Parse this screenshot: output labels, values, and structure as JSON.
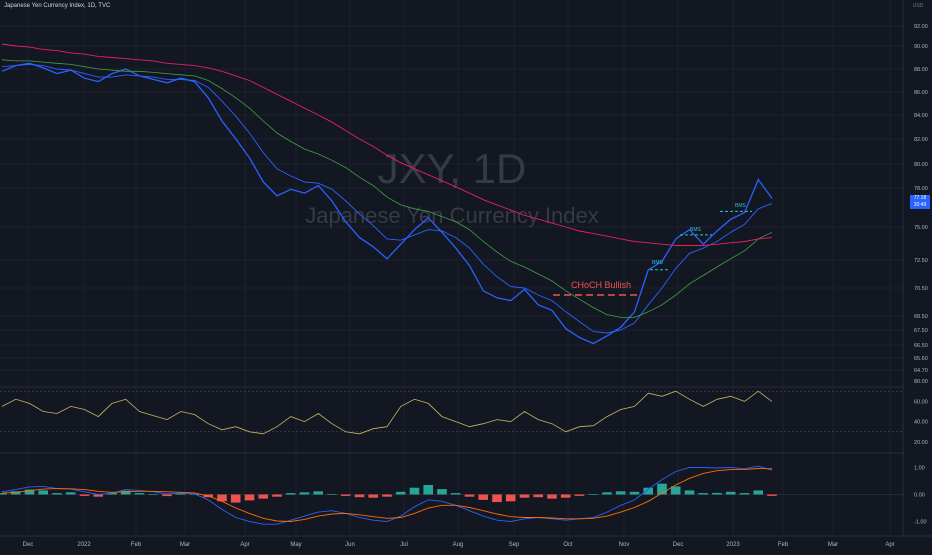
{
  "header": {
    "symbol_line": "Japanese Yen Currency Index, 1D, TVC",
    "currency": "USD"
  },
  "watermark": {
    "symbol": "JXY, 1D",
    "description": "Japanese Yen Currency Index"
  },
  "last_price": {
    "value": "77.18",
    "countdown": "20:49"
  },
  "colors": {
    "background": "#131722",
    "price_line": "#2962ff",
    "ema_fast": "#2962ff",
    "ema_mid": "#43a047",
    "ema_slow": "#e91e63",
    "rsi": "#c8b560",
    "macd_line": "#2962ff",
    "signal_line": "#ff6d00",
    "hist_pos": "#26a69a",
    "hist_neg": "#ef5350",
    "annotation_choch": "#ef5350",
    "annotation_bms": "#26c6da"
  },
  "annotations": {
    "choch": "CHoCH Bullish",
    "bms": [
      "BMS",
      "BMS",
      "BMS"
    ]
  },
  "chart_data": [
    {
      "type": "line",
      "title": "",
      "x_axis_labels": [
        "Dec",
        "2022",
        "Feb",
        "Mar",
        "Apr",
        "May",
        "Jun",
        "Jul",
        "Aug",
        "Sep",
        "Oct",
        "Nov",
        "Dec",
        "2023",
        "Feb",
        "Mar",
        "Apr"
      ],
      "y_ticks": [
        "92.00",
        "90.00",
        "88.00",
        "86.00",
        "84.00",
        "82.00",
        "80.00",
        "78.00",
        "75.00",
        "72.50",
        "70.50",
        "68.50",
        "67.50",
        "66.50",
        "65.60",
        "64.70"
      ],
      "ylim": [
        64.7,
        92.0
      ],
      "series": [
        {
          "role": "price",
          "values": [
            87.8,
            88.3,
            88.5,
            88.1,
            87.6,
            87.9,
            87.2,
            86.9,
            87.6,
            88.0,
            87.4,
            87.1,
            86.8,
            87.2,
            86.9,
            85.5,
            83.5,
            82.0,
            80.5,
            78.5,
            77.4,
            77.9,
            77.6,
            78.2,
            77.0,
            75.4,
            74.2,
            73.5,
            72.6,
            73.7,
            74.8,
            75.7,
            74.6,
            73.4,
            72.1,
            70.3,
            69.8,
            69.6,
            70.4,
            69.3,
            68.9,
            67.6,
            67.0,
            66.6,
            67.1,
            67.7,
            68.8,
            71.8,
            72.4,
            74.1,
            74.8,
            73.7,
            74.7,
            75.6,
            76.1,
            78.7,
            77.2
          ]
        },
        {
          "role": "ema-fast",
          "values": [
            88.2,
            88.3,
            88.4,
            88.3,
            88.0,
            87.9,
            87.6,
            87.3,
            87.3,
            87.5,
            87.4,
            87.3,
            87.1,
            87.1,
            87.0,
            86.4,
            85.2,
            83.9,
            82.5,
            80.9,
            79.6,
            79.0,
            78.5,
            78.4,
            77.9,
            77.0,
            76.0,
            75.1,
            74.1,
            74.0,
            74.4,
            74.8,
            74.7,
            74.2,
            73.4,
            72.2,
            71.3,
            70.6,
            70.5,
            70.0,
            69.6,
            68.8,
            68.1,
            67.4,
            67.3,
            67.5,
            68.0,
            69.3,
            70.5,
            71.9,
            73.0,
            73.4,
            73.9,
            74.6,
            75.2,
            76.4,
            76.8
          ]
        },
        {
          "role": "ema-mid",
          "values": [
            88.8,
            88.7,
            88.7,
            88.6,
            88.5,
            88.4,
            88.2,
            88.0,
            87.9,
            87.8,
            87.8,
            87.7,
            87.6,
            87.5,
            87.4,
            87.0,
            86.3,
            85.5,
            84.6,
            83.5,
            82.5,
            81.8,
            81.2,
            80.8,
            80.3,
            79.7,
            78.9,
            78.2,
            77.3,
            76.7,
            76.4,
            76.2,
            75.8,
            75.4,
            74.8,
            73.9,
            73.1,
            72.4,
            72.0,
            71.5,
            71.0,
            70.3,
            69.7,
            69.1,
            68.6,
            68.4,
            68.4,
            68.8,
            69.3,
            70.0,
            70.8,
            71.4,
            72.0,
            72.6,
            73.2,
            74.1,
            74.6
          ]
        },
        {
          "role": "ema-slow",
          "values": [
            90.2,
            90.0,
            89.9,
            89.7,
            89.6,
            89.4,
            89.3,
            89.1,
            89.0,
            88.9,
            88.8,
            88.7,
            88.5,
            88.4,
            88.3,
            88.1,
            87.8,
            87.4,
            87.0,
            86.4,
            85.8,
            85.2,
            84.6,
            84.0,
            83.4,
            82.7,
            82.0,
            81.4,
            80.7,
            80.1,
            79.6,
            79.1,
            78.6,
            78.1,
            77.6,
            77.1,
            76.7,
            76.3,
            75.9,
            75.6,
            75.3,
            75.0,
            74.7,
            74.5,
            74.3,
            74.1,
            73.9,
            73.8,
            73.7,
            73.6,
            73.6,
            73.6,
            73.7,
            73.8,
            73.9,
            74.1,
            74.2
          ]
        }
      ],
      "annotation_levels": {
        "choch": 70.0,
        "bms": [
          71.8,
          74.4,
          76.2
        ]
      }
    },
    {
      "type": "line",
      "title": "",
      "y_ticks": [
        "80.00",
        "60.00",
        "40.00",
        "20.00"
      ],
      "ylim": [
        15,
        85
      ],
      "levels": [
        70,
        30
      ],
      "series": [
        {
          "role": "rsi",
          "values": [
            55,
            62,
            58,
            50,
            48,
            55,
            52,
            45,
            58,
            62,
            50,
            46,
            42,
            50,
            47,
            38,
            32,
            35,
            30,
            28,
            35,
            45,
            40,
            48,
            38,
            30,
            28,
            33,
            35,
            55,
            62,
            58,
            45,
            40,
            35,
            38,
            42,
            40,
            50,
            42,
            38,
            30,
            35,
            36,
            45,
            52,
            55,
            68,
            65,
            70,
            62,
            55,
            62,
            65,
            60,
            70,
            60
          ]
        }
      ]
    },
    {
      "type": "bar",
      "title": "",
      "y_ticks": [
        "1.00",
        "0.00",
        "-1.00"
      ],
      "ylim": [
        -1.35,
        1.35
      ],
      "series": [
        {
          "role": "histogram",
          "values": [
            0.05,
            0.12,
            0.18,
            0.15,
            0.05,
            0.08,
            -0.05,
            -0.08,
            0.06,
            0.14,
            0.05,
            0.02,
            -0.06,
            0.04,
            0.02,
            -0.1,
            -0.25,
            -0.3,
            -0.22,
            -0.15,
            -0.08,
            0.05,
            0.08,
            0.12,
            0.02,
            -0.05,
            -0.1,
            -0.12,
            -0.08,
            0.1,
            0.25,
            0.35,
            0.2,
            0.05,
            -0.08,
            -0.2,
            -0.28,
            -0.25,
            -0.12,
            -0.1,
            -0.15,
            -0.12,
            -0.05,
            0.02,
            0.08,
            0.12,
            0.1,
            0.25,
            0.4,
            0.3,
            0.15,
            0.05,
            0.06,
            0.1,
            0.05,
            0.15,
            -0.05
          ]
        },
        {
          "role": "macd",
          "values": [
            0.1,
            0.18,
            0.28,
            0.3,
            0.22,
            0.2,
            0.1,
            0.0,
            0.05,
            0.18,
            0.15,
            0.1,
            0.02,
            0.05,
            0.02,
            -0.2,
            -0.55,
            -0.85,
            -1.0,
            -1.1,
            -1.1,
            -0.95,
            -0.8,
            -0.65,
            -0.6,
            -0.7,
            -0.85,
            -0.95,
            -1.0,
            -0.8,
            -0.45,
            -0.2,
            -0.25,
            -0.4,
            -0.6,
            -0.8,
            -0.95,
            -1.0,
            -0.9,
            -0.85,
            -0.9,
            -0.95,
            -0.9,
            -0.85,
            -0.65,
            -0.4,
            -0.2,
            0.2,
            0.55,
            0.85,
            1.0,
            1.0,
            0.98,
            1.0,
            0.95,
            1.05,
            0.9
          ]
        },
        {
          "role": "signal",
          "values": [
            0.05,
            0.08,
            0.14,
            0.2,
            0.22,
            0.21,
            0.18,
            0.12,
            0.08,
            0.1,
            0.12,
            0.12,
            0.1,
            0.08,
            0.06,
            -0.05,
            -0.25,
            -0.5,
            -0.7,
            -0.88,
            -0.98,
            -1.0,
            -0.92,
            -0.8,
            -0.72,
            -0.7,
            -0.75,
            -0.82,
            -0.88,
            -0.85,
            -0.7,
            -0.5,
            -0.4,
            -0.4,
            -0.48,
            -0.6,
            -0.72,
            -0.82,
            -0.85,
            -0.85,
            -0.87,
            -0.9,
            -0.9,
            -0.88,
            -0.8,
            -0.65,
            -0.48,
            -0.25,
            0.05,
            0.35,
            0.6,
            0.78,
            0.88,
            0.92,
            0.93,
            0.96,
            0.95
          ]
        }
      ]
    }
  ]
}
